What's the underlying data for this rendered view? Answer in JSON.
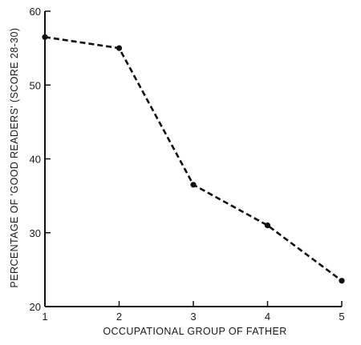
{
  "chart_data": {
    "type": "line",
    "title": "",
    "xlabel": "OCCUPATIONAL  GROUP  OF  FATHER",
    "ylabel": "PERCENTAGE OF 'GOOD READERS' (SCORE 28-30)",
    "x": [
      1,
      2,
      3,
      4,
      5
    ],
    "xticks": [
      "1",
      "2",
      "3",
      "4",
      "5"
    ],
    "yticks": [
      "20",
      "30",
      "40",
      "50",
      "60"
    ],
    "xlim": [
      1,
      5
    ],
    "ylim": [
      20,
      60
    ],
    "series": [
      {
        "values": [
          56.5,
          55,
          36.5,
          31,
          23.5
        ]
      }
    ],
    "grid": false,
    "line_style": "dashed",
    "marker": "filled-circle",
    "color": "#111111"
  }
}
